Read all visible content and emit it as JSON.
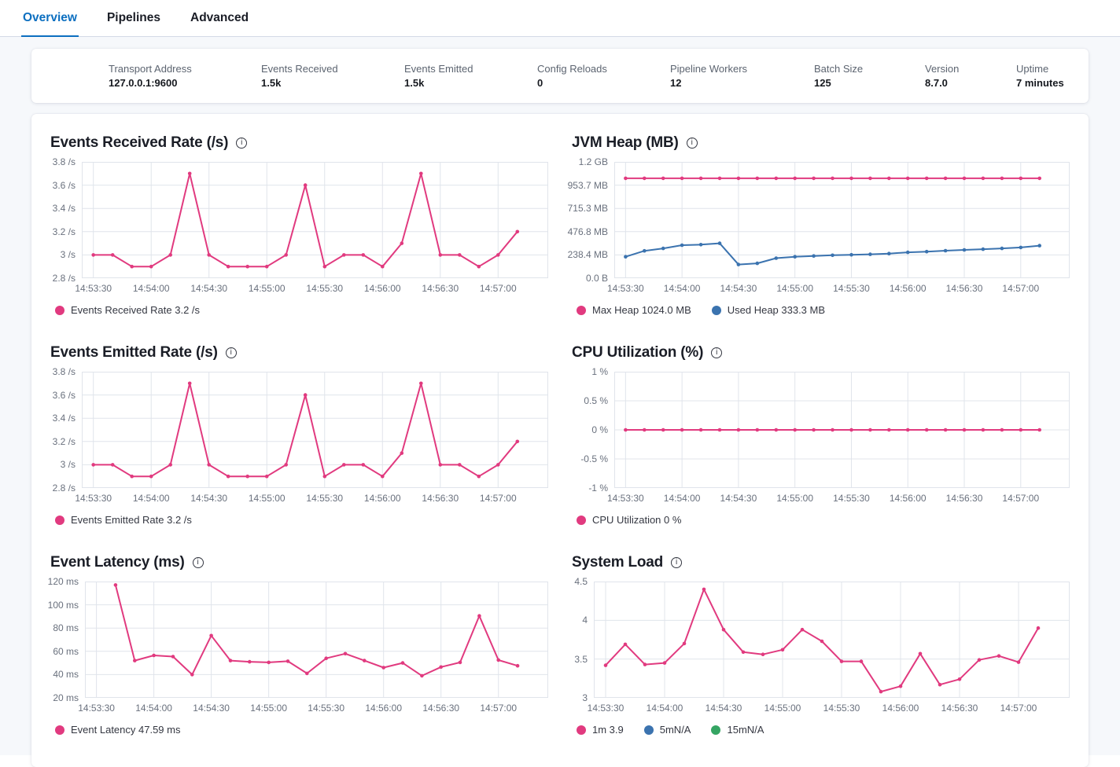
{
  "tabs": [
    {
      "label": "Overview",
      "active": true
    },
    {
      "label": "Pipelines",
      "active": false
    },
    {
      "label": "Advanced",
      "active": false
    }
  ],
  "summary": {
    "items": [
      {
        "label": "Transport Address",
        "value": "127.0.0.1:9600"
      },
      {
        "label": "Events Received",
        "value": "1.5k"
      },
      {
        "label": "Events Emitted",
        "value": "1.5k"
      },
      {
        "label": "Config Reloads",
        "value": "0"
      },
      {
        "label": "Pipeline Workers",
        "value": "12"
      },
      {
        "label": "Batch Size",
        "value": "125"
      },
      {
        "label": "Version",
        "value": "8.7.0"
      },
      {
        "label": "Uptime",
        "value": "7 minutes"
      }
    ]
  },
  "colors": {
    "accent_pink": "#e13a7f",
    "series_blue": "#3b73af",
    "series_green": "#35a563",
    "tab_active_blue": "#0c6fc0",
    "grid_line": "#e0e4eb",
    "axis_text": "#69707d"
  },
  "chart_data": [
    {
      "id": "events-received-rate",
      "type": "line",
      "title": "Events Received Rate (/s)",
      "layout": {
        "y_label_width": 40,
        "legend_position": "bottom",
        "grid": true
      },
      "y_axis": {
        "tick_labels": [
          "3.8 /s",
          "3.6 /s",
          "3.4 /s",
          "3.2 /s",
          "3 /s",
          "2.8 /s"
        ],
        "min": 2.8,
        "max": 3.8
      },
      "x_axis": {
        "tick_labels": [
          "14:53:30",
          "14:54:00",
          "14:54:30",
          "14:55:00",
          "14:55:30",
          "14:56:00",
          "14:56:30",
          "14:57:00"
        ],
        "tick_seconds": [
          0,
          30,
          60,
          90,
          120,
          150,
          180,
          210
        ],
        "domain": [
          -6,
          236
        ]
      },
      "series": [
        {
          "name": "Events Received Rate",
          "color": "#e13a7f",
          "start_sec": 0,
          "step_sec": 10,
          "values": [
            3,
            3,
            2.9,
            2.9,
            3,
            3.7,
            3,
            2.9,
            2.9,
            2.9,
            3,
            3.6,
            2.9,
            3,
            3,
            2.9,
            3.1,
            3.7,
            3,
            3,
            2.9,
            3,
            3.2
          ]
        }
      ],
      "legend": [
        {
          "color": "#e13a7f",
          "label": "Events Received Rate 3.2 /s"
        }
      ]
    },
    {
      "id": "jvm-heap",
      "type": "line",
      "title": "JVM Heap (MB)",
      "layout": {
        "y_label_width": 54,
        "legend_position": "bottom",
        "grid": true
      },
      "y_axis": {
        "tick_labels": [
          "1.2 GB",
          "953.7 MB",
          "715.3 MB",
          "476.8 MB",
          "238.4 MB",
          "0.0 B"
        ],
        "min": 0,
        "max": 1192.1
      },
      "x_axis": {
        "tick_labels": [
          "14:53:30",
          "14:54:00",
          "14:54:30",
          "14:55:00",
          "14:55:30",
          "14:56:00",
          "14:56:30",
          "14:57:00"
        ],
        "tick_seconds": [
          0,
          30,
          60,
          90,
          120,
          150,
          180,
          210
        ],
        "domain": [
          -6,
          236
        ]
      },
      "series": [
        {
          "name": "Max Heap",
          "color": "#e13a7f",
          "start_sec": 0,
          "step_sec": 10,
          "values": [
            1024,
            1024,
            1024,
            1024,
            1024,
            1024,
            1024,
            1024,
            1024,
            1024,
            1024,
            1024,
            1024,
            1024,
            1024,
            1024,
            1024,
            1024,
            1024,
            1024,
            1024,
            1024,
            1024
          ]
        },
        {
          "name": "Used Heap",
          "color": "#3b73af",
          "start_sec": 0,
          "step_sec": 10,
          "values": [
            220,
            280,
            305,
            338,
            344,
            358,
            140,
            152,
            205,
            220,
            228,
            235,
            240,
            245,
            252,
            265,
            272,
            282,
            290,
            297,
            305,
            315,
            333.3
          ]
        }
      ],
      "legend": [
        {
          "color": "#e13a7f",
          "label": "Max Heap 1024.0 MB"
        },
        {
          "color": "#3b73af",
          "label": "Used Heap 333.3 MB"
        }
      ]
    },
    {
      "id": "events-emitted-rate",
      "type": "line",
      "title": "Events Emitted Rate (/s)",
      "layout": {
        "y_label_width": 40,
        "legend_position": "bottom",
        "grid": true
      },
      "y_axis": {
        "tick_labels": [
          "3.8 /s",
          "3.6 /s",
          "3.4 /s",
          "3.2 /s",
          "3 /s",
          "2.8 /s"
        ],
        "min": 2.8,
        "max": 3.8
      },
      "x_axis": {
        "tick_labels": [
          "14:53:30",
          "14:54:00",
          "14:54:30",
          "14:55:00",
          "14:55:30",
          "14:56:00",
          "14:56:30",
          "14:57:00"
        ],
        "tick_seconds": [
          0,
          30,
          60,
          90,
          120,
          150,
          180,
          210
        ],
        "domain": [
          -6,
          236
        ]
      },
      "series": [
        {
          "name": "Events Emitted Rate",
          "color": "#e13a7f",
          "start_sec": 0,
          "step_sec": 10,
          "values": [
            3,
            3,
            2.9,
            2.9,
            3,
            3.7,
            3,
            2.9,
            2.9,
            2.9,
            3,
            3.6,
            2.9,
            3,
            3,
            2.9,
            3.1,
            3.7,
            3,
            3,
            2.9,
            3,
            3.2
          ]
        }
      ],
      "legend": [
        {
          "color": "#e13a7f",
          "label": "Events Emitted Rate 3.2 /s"
        }
      ]
    },
    {
      "id": "cpu-utilization",
      "type": "line",
      "title": "CPU Utilization (%)",
      "layout": {
        "y_label_width": 54,
        "legend_position": "bottom",
        "grid": true
      },
      "y_axis": {
        "tick_labels": [
          "1 %",
          "0.5 %",
          "0 %",
          "-0.5 %",
          "-1 %"
        ],
        "min": -1,
        "max": 1
      },
      "x_axis": {
        "tick_labels": [
          "14:53:30",
          "14:54:00",
          "14:54:30",
          "14:55:00",
          "14:55:30",
          "14:56:00",
          "14:56:30",
          "14:57:00"
        ],
        "tick_seconds": [
          0,
          30,
          60,
          90,
          120,
          150,
          180,
          210
        ],
        "domain": [
          -6,
          236
        ]
      },
      "series": [
        {
          "name": "CPU Utilization",
          "color": "#e13a7f",
          "start_sec": 0,
          "step_sec": 10,
          "values": [
            0,
            0,
            0,
            0,
            0,
            0,
            0,
            0,
            0,
            0,
            0,
            0,
            0,
            0,
            0,
            0,
            0,
            0,
            0,
            0,
            0,
            0,
            0
          ]
        }
      ],
      "legend": [
        {
          "color": "#e13a7f",
          "label": "CPU Utilization 0 %"
        }
      ]
    },
    {
      "id": "event-latency",
      "type": "line",
      "title": "Event Latency (ms)",
      "layout": {
        "y_label_width": 44,
        "legend_position": "bottom",
        "grid": true
      },
      "y_axis": {
        "tick_labels": [
          "120 ms",
          "100 ms",
          "80 ms",
          "60 ms",
          "40 ms",
          "20 ms"
        ],
        "min": 20,
        "max": 120
      },
      "x_axis": {
        "tick_labels": [
          "14:53:30",
          "14:54:00",
          "14:54:30",
          "14:55:00",
          "14:55:30",
          "14:56:00",
          "14:56:30",
          "14:57:00"
        ],
        "tick_seconds": [
          0,
          30,
          60,
          90,
          120,
          150,
          180,
          210
        ],
        "domain": [
          -6,
          236
        ]
      },
      "series": [
        {
          "name": "Event Latency",
          "color": "#e13a7f",
          "start_sec": 10,
          "step_sec": 10,
          "values": [
            117,
            52,
            56.5,
            55.5,
            40,
            73.5,
            52,
            51,
            50.5,
            51.5,
            41,
            54,
            58,
            52,
            46,
            50,
            39,
            46.5,
            50.5,
            90.5,
            52.5,
            47.59
          ]
        }
      ],
      "legend": [
        {
          "color": "#e13a7f",
          "label": "Event Latency 47.59 ms"
        }
      ]
    },
    {
      "id": "system-load",
      "type": "line",
      "title": "System Load",
      "layout": {
        "y_label_width": 28,
        "legend_position": "bottom",
        "grid": true
      },
      "y_axis": {
        "tick_labels": [
          "4.5",
          "4",
          "3.5",
          "3"
        ],
        "min": 3,
        "max": 4.5
      },
      "x_axis": {
        "tick_labels": [
          "14:53:30",
          "14:54:00",
          "14:54:30",
          "14:55:00",
          "14:55:30",
          "14:56:00",
          "14:56:30",
          "14:57:00"
        ],
        "tick_seconds": [
          0,
          30,
          60,
          90,
          120,
          150,
          180,
          210
        ],
        "domain": [
          -6,
          236
        ]
      },
      "series": [
        {
          "name": "1m",
          "color": "#e13a7f",
          "start_sec": 0,
          "step_sec": 10,
          "values": [
            3.42,
            3.69,
            3.43,
            3.45,
            3.7,
            4.4,
            3.88,
            3.59,
            3.56,
            3.62,
            3.88,
            3.73,
            3.47,
            3.47,
            3.08,
            3.15,
            3.57,
            3.17,
            3.24,
            3.49,
            3.54,
            3.46,
            3.9
          ]
        }
      ],
      "legend": [
        {
          "color": "#e13a7f",
          "label": "1m 3.9"
        },
        {
          "color": "#3b73af",
          "label": "5mN/A"
        },
        {
          "color": "#35a563",
          "label": "15mN/A"
        }
      ]
    }
  ]
}
